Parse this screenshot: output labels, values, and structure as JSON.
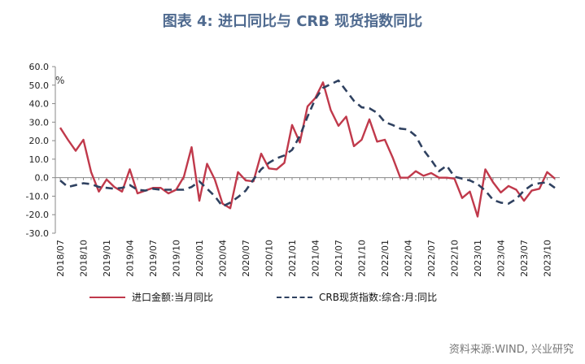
{
  "chart_data": {
    "type": "line",
    "title": "图表 4:  进口同比与 CRB 现货指数同比",
    "ylabel": "%",
    "xlabel": "",
    "ylim": [
      -30,
      60
    ],
    "yticks": [
      "60.0",
      "50.0",
      "40.0",
      "30.0",
      "20.0",
      "10.0",
      "0.0",
      "-10.0",
      "-20.0",
      "-30.0"
    ],
    "ytick_values": [
      60,
      50,
      40,
      30,
      20,
      10,
      0,
      -10,
      -20,
      -30
    ],
    "x": [
      "2018/07",
      "2018/08",
      "2018/09",
      "2018/10",
      "2018/11",
      "2018/12",
      "2019/01",
      "2019/02",
      "2019/03",
      "2019/04",
      "2019/05",
      "2019/06",
      "2019/07",
      "2019/08",
      "2019/09",
      "2019/10",
      "2019/11",
      "2019/12",
      "2020/01",
      "2020/02",
      "2020/03",
      "2020/04",
      "2020/05",
      "2020/06",
      "2020/07",
      "2020/08",
      "2020/09",
      "2020/10",
      "2020/11",
      "2020/12",
      "2021/01",
      "2021/02",
      "2021/03",
      "2021/04",
      "2021/05",
      "2021/06",
      "2021/07",
      "2021/08",
      "2021/09",
      "2021/10",
      "2021/11",
      "2021/12",
      "2022/01",
      "2022/02",
      "2022/03",
      "2022/04",
      "2022/05",
      "2022/06",
      "2022/07",
      "2022/08",
      "2022/09",
      "2022/10",
      "2022/11",
      "2022/12",
      "2023/01",
      "2023/02",
      "2023/03",
      "2023/04",
      "2023/05",
      "2023/06",
      "2023/07",
      "2023/08",
      "2023/09",
      "2023/10",
      "2023/11"
    ],
    "x_tick_labels": [
      "2018/07",
      "2018/10",
      "2019/01",
      "2019/04",
      "2019/07",
      "2019/10",
      "2020/01",
      "2020/04",
      "2020/07",
      "2020/10",
      "2021/01",
      "2021/04",
      "2021/07",
      "2021/10",
      "2022/01",
      "2022/04",
      "2022/07",
      "2022/10",
      "2023/01",
      "2023/04",
      "2023/07",
      "2023/10"
    ],
    "series": [
      {
        "name": "进口金额:当月同比",
        "color": "#c0394b",
        "style": "solid",
        "values": [
          27.0,
          20.5,
          14.5,
          20.5,
          3.0,
          -7.5,
          -1.0,
          -5.0,
          -7.5,
          4.5,
          -8.5,
          -7.0,
          -5.5,
          -5.5,
          -8.5,
          -6.5,
          0.5,
          16.5,
          -12.5,
          7.5,
          -1.0,
          -14.0,
          -16.5,
          3.0,
          -1.5,
          -2.0,
          13.0,
          5.0,
          4.5,
          8.0,
          28.5,
          19.0,
          38.5,
          43.0,
          51.5,
          36.5,
          28.0,
          33.0,
          17.0,
          20.5,
          31.5,
          19.5,
          20.5,
          11.0,
          0.0,
          0.0,
          3.5,
          1.0,
          2.5,
          0.0,
          0.0,
          -0.5,
          -11.0,
          -7.5,
          -21.0,
          4.5,
          -2.5,
          -8.0,
          -4.5,
          -6.5,
          -12.5,
          -7.0,
          -6.0,
          3.0,
          -0.5
        ]
      },
      {
        "name": "CRB现货指数:综合:月:同比",
        "color": "#2f4160",
        "style": "dashed",
        "values": [
          -1.5,
          -5.0,
          -4.0,
          -3.0,
          -3.5,
          -5.0,
          -5.5,
          -6.0,
          -5.5,
          -4.0,
          -6.5,
          -7.0,
          -6.0,
          -6.5,
          -6.5,
          -6.5,
          -6.5,
          -5.0,
          -2.0,
          -6.0,
          -10.0,
          -15.5,
          -13.5,
          -10.5,
          -7.0,
          -1.0,
          4.5,
          8.0,
          10.5,
          12.0,
          15.0,
          22.5,
          33.0,
          42.5,
          48.5,
          50.5,
          52.5,
          47.0,
          41.5,
          38.0,
          37.5,
          35.0,
          30.0,
          28.5,
          26.5,
          26.0,
          22.5,
          15.0,
          9.5,
          3.5,
          6.5,
          0.5,
          -0.5,
          -1.5,
          -3.5,
          -7.0,
          -12.0,
          -13.5,
          -14.0,
          -11.5,
          -7.0,
          -4.0,
          -3.0,
          -2.5,
          -5.5
        ]
      }
    ],
    "legend_position": "bottom"
  },
  "source": "资料来源:WIND, 兴业研究"
}
